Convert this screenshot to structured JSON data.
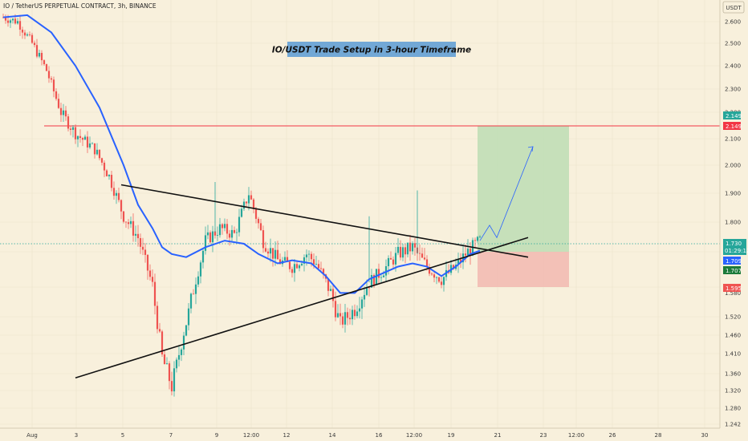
{
  "header": {
    "symbol": "IO / TetherUS PERPETUAL CONTRACT, 3h, BINANCE",
    "currency": "USDT"
  },
  "annotation": "IO/USDT Trade Setup in 3-hour Timeframe",
  "price_tags": {
    "target_1": "2.149",
    "target_2": "2.149",
    "current_price": "1.730",
    "countdown": "01:29:12",
    "ema_value": "1.709",
    "entry": "1.707",
    "stop": "1.595"
  },
  "colors": {
    "background": "#f8f0dc",
    "up_candle": "#26a69a",
    "down_candle": "#ef5350",
    "ema_line": "#2962ff",
    "resistance_line": "#f23645",
    "profit_zone": "#b9dcb1",
    "loss_zone": "#f2b8b0",
    "projection": "#2962ff"
  },
  "chart_data": {
    "type": "candlestick",
    "title": "IO / TetherUS PERPETUAL CONTRACT, 3h, BINANCE",
    "timeframe": "3h",
    "y_axis_labels": [
      "2.600",
      "2.500",
      "2.400",
      "2.300",
      "2.200",
      "2.100",
      "2.000",
      "1.900",
      "1.800",
      "1.730",
      "1.709",
      "1.707",
      "1.595",
      "1.580",
      "1.520",
      "1.460",
      "1.410",
      "1.360",
      "1.320",
      "1.280",
      "1.242"
    ],
    "x_axis_labels": [
      "Aug",
      "3",
      "5",
      "7",
      "9",
      "12:00",
      "12",
      "14",
      "16",
      "12:00",
      "19",
      "21",
      "23",
      "12:00",
      "26",
      "28",
      "30"
    ],
    "ylim": [
      1.242,
      2.65
    ],
    "bars": 199,
    "keyframes": [
      [
        0,
        2.62
      ],
      [
        6,
        2.6
      ],
      [
        12,
        2.5
      ],
      [
        18,
        2.38
      ],
      [
        24,
        2.2
      ],
      [
        30,
        2.12
      ],
      [
        38,
        2.06
      ],
      [
        44,
        1.96
      ],
      [
        50,
        1.82
      ],
      [
        56,
        1.75
      ],
      [
        62,
        1.6
      ],
      [
        66,
        1.4
      ],
      [
        70,
        1.33
      ],
      [
        72,
        1.38
      ],
      [
        78,
        1.56
      ],
      [
        84,
        1.74
      ],
      [
        90,
        1.78
      ],
      [
        96,
        1.76
      ],
      [
        102,
        1.9
      ],
      [
        108,
        1.74
      ],
      [
        114,
        1.68
      ],
      [
        120,
        1.66
      ],
      [
        126,
        1.7
      ],
      [
        130,
        1.67
      ],
      [
        136,
        1.58
      ],
      [
        140,
        1.5
      ],
      [
        146,
        1.54
      ],
      [
        152,
        1.61
      ],
      [
        158,
        1.65
      ],
      [
        164,
        1.7
      ],
      [
        170,
        1.72
      ],
      [
        176,
        1.66
      ],
      [
        182,
        1.62
      ],
      [
        188,
        1.66
      ],
      [
        192,
        1.7
      ],
      [
        198,
        1.74
      ]
    ],
    "ema": {
      "name": "EMA",
      "points": [
        [
          0,
          2.62
        ],
        [
          10,
          2.63
        ],
        [
          20,
          2.55
        ],
        [
          30,
          2.4
        ],
        [
          40,
          2.22
        ],
        [
          50,
          2.0
        ],
        [
          56,
          1.86
        ],
        [
          62,
          1.78
        ],
        [
          66,
          1.72
        ],
        [
          70,
          1.7
        ],
        [
          76,
          1.69
        ],
        [
          84,
          1.72
        ],
        [
          92,
          1.74
        ],
        [
          100,
          1.73
        ],
        [
          106,
          1.7
        ],
        [
          114,
          1.67
        ],
        [
          120,
          1.68
        ],
        [
          128,
          1.67
        ],
        [
          134,
          1.63
        ],
        [
          140,
          1.58
        ],
        [
          146,
          1.58
        ],
        [
          152,
          1.62
        ],
        [
          158,
          1.64
        ],
        [
          164,
          1.66
        ],
        [
          170,
          1.67
        ],
        [
          176,
          1.66
        ],
        [
          182,
          1.63
        ],
        [
          188,
          1.66
        ],
        [
          194,
          1.7
        ],
        [
          198,
          1.71
        ]
      ]
    },
    "trendlines": [
      {
        "name": "upper",
        "from": [
          49,
          1.93
        ],
        "to": [
          218,
          1.69
        ]
      },
      {
        "name": "lower",
        "from": [
          30,
          1.35
        ],
        "to": [
          218,
          1.75
        ]
      }
    ],
    "horizontal_line": 2.149,
    "trade_setup": {
      "entry": 1.707,
      "target": 2.149,
      "stop": 1.595
    },
    "projection_path": [
      [
        198,
        1.74
      ],
      [
        202,
        1.79
      ],
      [
        205,
        1.75
      ],
      [
        220,
        2.07
      ]
    ]
  }
}
